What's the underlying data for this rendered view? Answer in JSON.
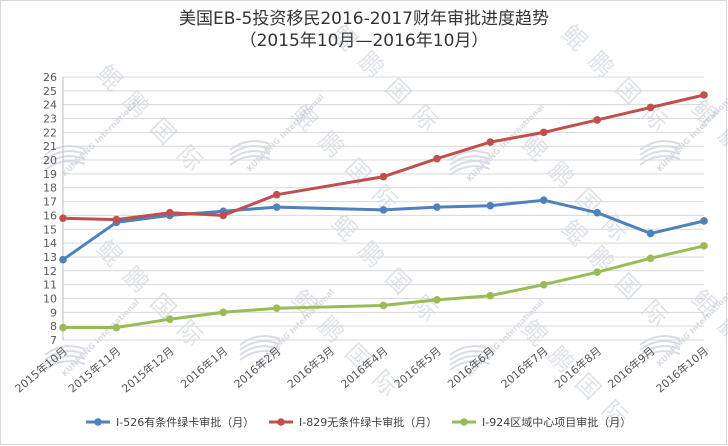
{
  "chart_data": {
    "type": "line",
    "title": "美国EB-5投资移民2016-2017财年审批进度趋势",
    "subtitle": "（2015年10月—2016年10月）",
    "categories": [
      "2015年10月",
      "2015年11月",
      "2015年12月",
      "2016年1月",
      "2016年2月",
      "2016年3月",
      "2016年4月",
      "2016年5月",
      "2016年6月",
      "2016年7月",
      "2016年8月",
      "2016年9月",
      "2016年10月"
    ],
    "ylim": [
      7,
      26
    ],
    "y_ticks": [
      7,
      8,
      9,
      10,
      11,
      12,
      13,
      14,
      15,
      16,
      17,
      18,
      19,
      20,
      21,
      22,
      23,
      24,
      25,
      26
    ],
    "grid": true,
    "legend_position": "bottom",
    "series": [
      {
        "name": "I-526有条件绿卡审批（月）",
        "color": "#4f81bd",
        "values": [
          12.8,
          15.5,
          16.0,
          16.3,
          16.6,
          null,
          16.4,
          16.6,
          16.7,
          17.1,
          16.2,
          14.7,
          15.6
        ]
      },
      {
        "name": "I-829无条件绿卡审批（月）",
        "color": "#c0504d",
        "values": [
          15.8,
          15.7,
          16.2,
          16.0,
          17.5,
          null,
          18.8,
          20.1,
          21.3,
          22.0,
          22.9,
          23.8,
          24.7
        ]
      },
      {
        "name": "I-924区域中心项目审批（月）",
        "color": "#9bbb59",
        "values": [
          7.9,
          7.9,
          8.5,
          9.0,
          9.3,
          null,
          9.5,
          9.9,
          10.2,
          11.0,
          11.9,
          12.9,
          13.8
        ]
      }
    ],
    "watermark": {
      "text": "鲲鹏国际",
      "logo_text": "KUNPENG International"
    }
  }
}
